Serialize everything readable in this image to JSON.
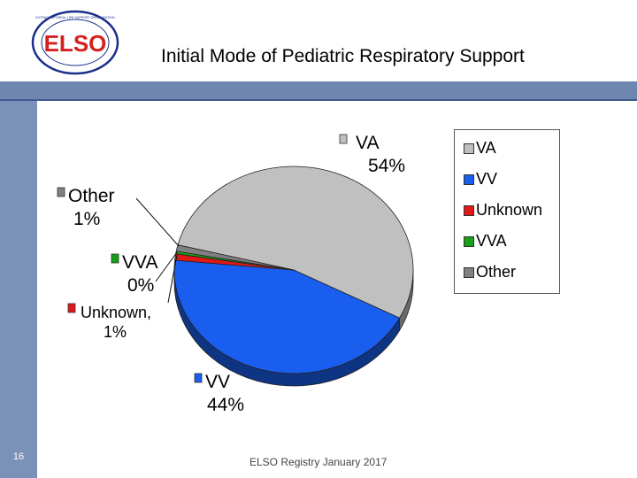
{
  "slide": {
    "title": "Initial Mode of Pediatric Respiratory Support",
    "footer": "ELSO Registry January 2017",
    "number": "16",
    "logo": {
      "text": "ELSO",
      "ring_text": "EXTRACORPOREAL LIFE SUPPORT ORGANIZATION",
      "icon": "elso-logo"
    },
    "colors": {
      "sidebar": "#7a92b8",
      "band": "#6f86b0"
    }
  },
  "chart_data": {
    "type": "pie",
    "slices": [
      {
        "name": "VA",
        "value": 54,
        "label": "VA 54%",
        "color": "#c0c0c0"
      },
      {
        "name": "VV",
        "value": 44,
        "label": "VV 44%",
        "color": "#1a5ef0"
      },
      {
        "name": "Unknown",
        "value": 1,
        "label": "Unknown, 1%",
        "color": "#e01818"
      },
      {
        "name": "VVA",
        "value": 0,
        "label": "VVA 0%",
        "color": "#18a018"
      },
      {
        "name": "Other",
        "value": 1,
        "label": "Other 1%",
        "color": "#808080"
      }
    ],
    "legend": [
      "VA",
      "VV",
      "Unknown",
      "VVA",
      "Other"
    ],
    "legend_position": "right",
    "style": "3d-pie"
  }
}
